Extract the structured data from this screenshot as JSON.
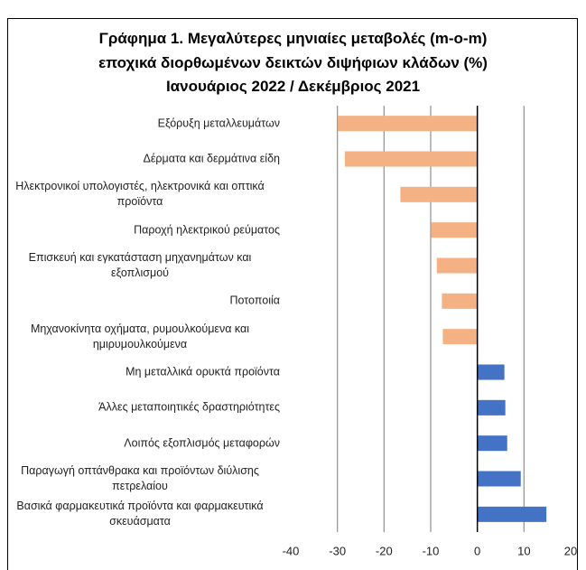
{
  "chart_data": {
    "type": "hbar",
    "title": "Γράφημα 1. Μεγαλύτερες μηνιαίες μεταβολές (m-o-m)",
    "subtitle": "εποχικά διορθωμένων δεικτών διψήφιων κλάδων (%)",
    "period": "Ιανουάριος 2022 / Δεκέμβριος 2021",
    "categories": [
      "Εξόρυξη μεταλλευμάτων",
      "Δέρματα και δερμάτινα είδη",
      "Ηλεκτρονικοί υπολογιστές, ηλεκτρονικά και οπτικά προϊόντα",
      "Παροχή ηλεκτρικού ρεύματος",
      "Επισκευή και εγκατάσταση μηχανημάτων και εξοπλισμού",
      "Ποτοποιία",
      "Μηχανοκίνητα οχήματα, ρυμουλκούμενα και ημιρυμουλκούμενα",
      "Μη μεταλλικά ορυκτά προϊόντα",
      "Άλλες μεταποιητικές δραστηριότητες",
      "Λοιπός εξοπλισμός μεταφορών",
      "Παραγωγή οπτάνθρακα και προϊόντων διύλισης πετρελαίου",
      "Βασικά φαρμακευτικά προϊόντα και φαρμακευτικά σκευάσματα"
    ],
    "values": [
      -29.9,
      -28.4,
      -16.5,
      -9.9,
      -8.7,
      -7.6,
      -7.4,
      5.8,
      6.0,
      6.4,
      9.3,
      14.8
    ],
    "colors": [
      "#f4b183",
      "#f4b183",
      "#f4b183",
      "#f4b183",
      "#f4b183",
      "#f4b183",
      "#f4b183",
      "#4472c4",
      "#4472c4",
      "#4472c4",
      "#4472c4",
      "#4472c4"
    ],
    "xlim": [
      -40,
      20
    ],
    "xticks": [
      -40,
      -30,
      -20,
      -10,
      0,
      10,
      20
    ],
    "grid": true
  }
}
